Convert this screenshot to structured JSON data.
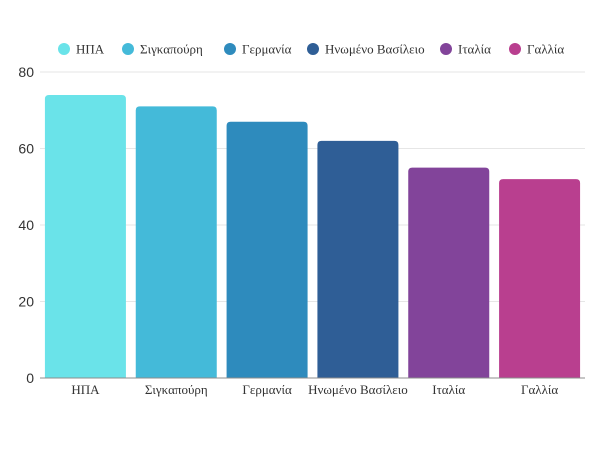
{
  "chart_data": {
    "type": "bar",
    "title": "",
    "xlabel": "",
    "ylabel": "",
    "categories": [
      "ΗΠΑ",
      "Σιγκαπούρη",
      "Γερμανία",
      "Ηνωμένο Βασίλειο",
      "Ιταλία",
      "Γαλλία"
    ],
    "values": [
      74,
      71,
      67,
      62,
      55,
      52
    ],
    "colors": [
      "#6ae3e9",
      "#44bad9",
      "#2e8bbd",
      "#2f5e96",
      "#82449a",
      "#b93f8f"
    ],
    "ylim": [
      0,
      80
    ],
    "yticks": [
      0,
      20,
      40,
      60,
      80
    ],
    "grid": true,
    "legend_position": "top"
  }
}
